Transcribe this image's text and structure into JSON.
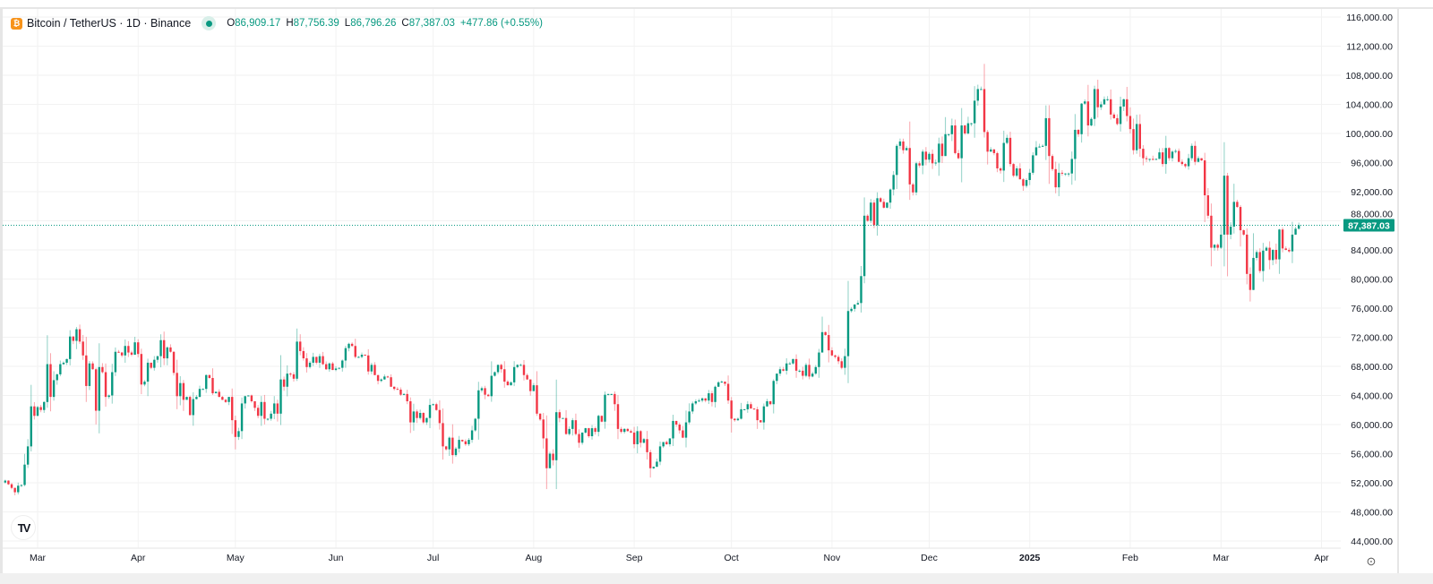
{
  "header": {
    "symbol": "Bitcoin / TetherUS · 1D · Binance",
    "open_label": "O",
    "open": "86,909.17",
    "high_label": "H",
    "high": "87,756.39",
    "low_label": "L",
    "low": "86,796.26",
    "close_label": "C",
    "close": "87,387.03",
    "change": "+477.86 (+0.55%)",
    "coin_icon": "bitcoin-icon",
    "status": "market-open-dot"
  },
  "colors": {
    "up": "#089981",
    "down": "#F23645",
    "grid": "#f2f2f2",
    "last_price": "#089981"
  },
  "chart_data": {
    "type": "candlestick",
    "interval": "1D",
    "first_date": "2024-02-20",
    "last_date": "2025-03-25",
    "note_open": "open equals previous close",
    "closes": [
      52300,
      51800,
      51300,
      50700,
      51600,
      51700,
      54500,
      57000,
      62500,
      61200,
      62400,
      62000,
      63100,
      68300,
      63800,
      66100,
      66900,
      68300,
      68500,
      69000,
      72100,
      71500,
      73100,
      71400,
      69500,
      65300,
      68400,
      67600,
      61900,
      67900,
      67200,
      63800,
      64000,
      67200,
      70000,
      69900,
      69500,
      70800,
      69900,
      69600,
      71300,
      69700,
      65500,
      65900,
      68500,
      67800,
      68900,
      69400,
      71600,
      69100,
      70600,
      70000,
      67100,
      63900,
      65700,
      63400,
      63800,
      61300,
      63500,
      63800,
      64900,
      64900,
      66800,
      66400,
      64300,
      64500,
      63800,
      63400,
      63100,
      63800,
      60600,
      58300,
      59100,
      62900,
      63900,
      64000,
      63200,
      62300,
      61200,
      63100,
      60800,
      60800,
      61500,
      62900,
      61500,
      66200,
      65200,
      67000,
      66900,
      66300,
      71400,
      70100,
      69100,
      67900,
      68500,
      69300,
      68500,
      69400,
      68300,
      67600,
      68400,
      67500,
      67700,
      67800,
      68800,
      70500,
      71100,
      70800,
      69300,
      69300,
      69600,
      69500,
      67300,
      68200,
      66800,
      66000,
      66200,
      66600,
      66500,
      65200,
      64900,
      64800,
      64100,
      64200,
      63200,
      60300,
      61800,
      60900,
      61600,
      60300,
      60900,
      62700,
      62800,
      62000,
      60200,
      57000,
      56600,
      58200,
      55800,
      56700,
      57900,
      57700,
      57300,
      57900,
      59200,
      60800,
      64700,
      65000,
      64100,
      63900,
      66700,
      67200,
      68200,
      67600,
      65900,
      65400,
      65800,
      67900,
      68200,
      68200,
      66800,
      66200,
      64600,
      65400,
      61500,
      60700,
      58100,
      54000,
      56000,
      55100,
      61700,
      60900,
      60900,
      58700,
      59400,
      60600,
      58700,
      57500,
      58900,
      59500,
      58400,
      59500,
      59000,
      61200,
      60400,
      64100,
      64200,
      64200,
      62800,
      59400,
      59000,
      59400,
      59100,
      58900,
      57300,
      59100,
      57500,
      58000,
      56200,
      54000,
      54200,
      54900,
      57000,
      57600,
      57300,
      58100,
      60500,
      60000,
      59200,
      58200,
      60300,
      61800,
      62900,
      63200,
      63300,
      63600,
      63300,
      64300,
      63100,
      65200,
      65800,
      65900,
      65600,
      63300,
      60800,
      60600,
      60800,
      62100,
      62100,
      62800,
      62200,
      62100,
      60600,
      60300,
      62500,
      63200,
      62800,
      66000,
      67000,
      67600,
      67400,
      68400,
      68400,
      69000,
      67400,
      67400,
      66700,
      68200,
      66600,
      67000,
      67900,
      69900,
      72700,
      72300,
      70200,
      69500,
      69300,
      68700,
      67800,
      69400,
      75600,
      75900,
      76500,
      76700,
      80400,
      88700,
      88000,
      90500,
      87400,
      91100,
      90600,
      89800,
      90500,
      92300,
      94300,
      98300,
      98900,
      97700,
      98000,
      93000,
      91900,
      95900,
      95600,
      97500,
      96400,
      97200,
      95900,
      96000,
      98600,
      96900,
      99900,
      99900,
      101100,
      97300,
      96600,
      101100,
      100000,
      101400,
      101400,
      104500,
      106100,
      106100,
      100200,
      97500,
      97800,
      97300,
      95200,
      94900,
      98700,
      99400,
      95800,
      94200,
      95200,
      93700,
      92800,
      93600,
      94600,
      97000,
      98100,
      98200,
      98300,
      102100,
      96900,
      95100,
      92600,
      94600,
      94500,
      94500,
      94500,
      96500,
      100500,
      99900,
      104100,
      104400,
      101100,
      102000,
      106100,
      103600,
      104000,
      104700,
      104700,
      102600,
      102100,
      101300,
      103700,
      104700,
      102400,
      100600,
      97700,
      101300,
      97900,
      96600,
      96500,
      96500,
      96400,
      96500,
      97400,
      95800,
      98000,
      96600,
      97500,
      97600,
      96100,
      95800,
      95500,
      96600,
      98300,
      96100,
      96600,
      96300,
      91500,
      88700,
      84300,
      84700,
      84300,
      86100,
      94200,
      86100,
      87200,
      90600,
      89900,
      86700,
      86100,
      80700,
      78500,
      82900,
      83700,
      81100,
      83900,
      84300,
      82600,
      84000,
      82700,
      86800,
      84200,
      84000,
      83800,
      86100,
      86909.17,
      87387.03
    ],
    "last_candle": {
      "open": 86909.17,
      "high": 87756.39,
      "low": 86796.26,
      "close": 87387.03
    },
    "y_ticks": [
      "116,000.00",
      "112,000.00",
      "108,000.00",
      "104,000.00",
      "100,000.00",
      "96,000.00",
      "92,000.00",
      "88,000.00",
      "84,000.00",
      "80,000.00",
      "76,000.00",
      "72,000.00",
      "68,000.00",
      "64,000.00",
      "60,000.00",
      "56,000.00",
      "52,000.00",
      "48,000.00",
      "44,000.00"
    ],
    "ylim": [
      44000,
      116000
    ],
    "x_ticks": [
      {
        "label": "Mar",
        "date": "2024-03-01"
      },
      {
        "label": "Apr",
        "date": "2024-04-01"
      },
      {
        "label": "May",
        "date": "2024-05-01"
      },
      {
        "label": "Jun",
        "date": "2024-06-01"
      },
      {
        "label": "Jul",
        "date": "2024-07-01"
      },
      {
        "label": "Aug",
        "date": "2024-08-01"
      },
      {
        "label": "Sep",
        "date": "2024-09-01"
      },
      {
        "label": "Oct",
        "date": "2024-10-01"
      },
      {
        "label": "Nov",
        "date": "2024-11-01"
      },
      {
        "label": "Dec",
        "date": "2024-12-01"
      },
      {
        "label": "2025",
        "date": "2025-01-01",
        "bold": true
      },
      {
        "label": "Feb",
        "date": "2025-02-01"
      },
      {
        "label": "Mar",
        "date": "2025-03-01"
      },
      {
        "label": "Apr",
        "date": "2025-04-01"
      }
    ],
    "last_price_label": "87,387.03",
    "grid": true
  },
  "branding": {
    "logo": "TV"
  }
}
